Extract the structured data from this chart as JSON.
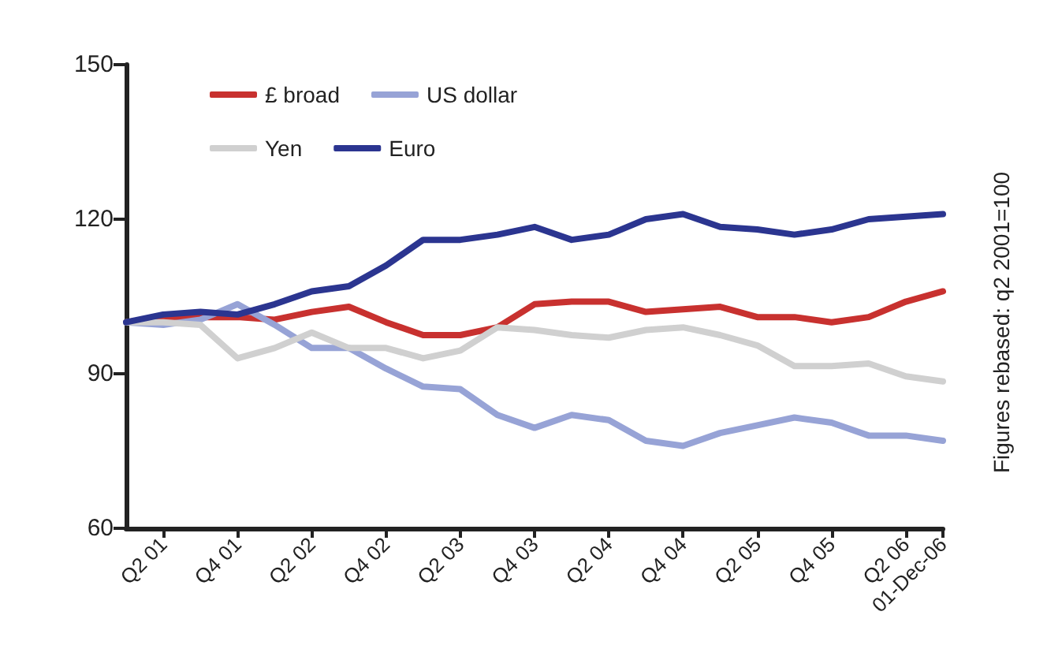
{
  "chart_data": {
    "type": "line",
    "ylabel": "Figures rebased: q2 2001=100",
    "categories": [
      null,
      "Q2 01",
      null,
      "Q4 01",
      null,
      "Q2 02",
      null,
      "Q4 02",
      null,
      "Q2 03",
      null,
      "Q4 03",
      null,
      "Q2 04",
      null,
      "Q4 04",
      null,
      "Q2 05",
      null,
      "Q4 05",
      null,
      "Q2 06",
      "01-Dec-06"
    ],
    "series": [
      {
        "name": "£ broad",
        "color": "#c8312f",
        "values": [
          100,
          101,
          101,
          101,
          100.5,
          102,
          103,
          100,
          97.5,
          97.5,
          99,
          103.5,
          104,
          104,
          102,
          102.5,
          103,
          101,
          101,
          100,
          101,
          104,
          106
        ]
      },
      {
        "name": "US dollar",
        "color": "#97a3d6",
        "values": [
          100,
          99.5,
          100.5,
          103.5,
          99.5,
          95,
          95,
          91,
          87.5,
          87,
          82,
          79.5,
          82,
          81,
          77,
          76,
          78.5,
          80,
          81.5,
          80.5,
          78,
          78,
          77
        ]
      },
      {
        "name": "Yen",
        "color": "#d0d0d0",
        "values": [
          100,
          100,
          99.5,
          93,
          95,
          98,
          95,
          95,
          93,
          94.5,
          99,
          98.5,
          97.5,
          97,
          98.5,
          99,
          97.5,
          95.5,
          91.5,
          91.5,
          92,
          89.5,
          88.5
        ]
      },
      {
        "name": "Euro",
        "color": "#2b3590",
        "values": [
          100,
          101.5,
          102,
          101.5,
          103.5,
          106,
          107,
          111,
          116,
          116,
          117,
          118.5,
          116,
          117,
          120,
          121,
          118.5,
          118,
          117,
          118,
          120,
          120.5,
          121
        ]
      }
    ],
    "ylim": [
      60,
      150
    ],
    "yticks": [
      60,
      90,
      120,
      150
    ],
    "grid": false,
    "legend": "top left",
    "marker": "none",
    "line_style": "solid"
  }
}
